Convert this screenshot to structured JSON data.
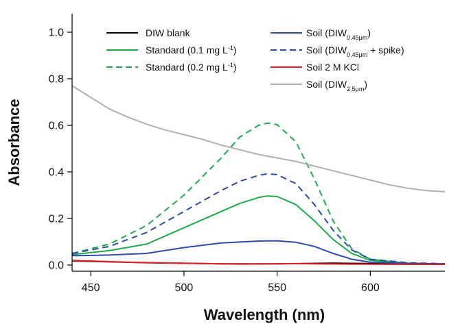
{
  "chart_data": {
    "type": "line",
    "xlabel": "Wavelength (nm)",
    "ylabel": "Absorbance",
    "xlim": [
      440,
      640
    ],
    "ylim": [
      0,
      1.05
    ],
    "xticks": [
      450,
      500,
      550,
      600
    ],
    "yticks": [
      0.0,
      0.2,
      0.4,
      0.6,
      0.8,
      1.0
    ],
    "grid": false,
    "legend_position": "top",
    "series": [
      {
        "name": "DIW blank",
        "legend": [
          {
            "t": "DIW blank"
          }
        ],
        "color": "#000000",
        "dash": "solid",
        "x": [
          440,
          480,
          520,
          550,
          580,
          610,
          640
        ],
        "y": [
          0.018,
          0.01,
          0.005,
          0.005,
          0.008,
          0.006,
          0.004
        ]
      },
      {
        "name": "Standard (0.1 mg L-1)",
        "legend": [
          {
            "t": "Standard (0.1 mg L"
          },
          {
            "t": "-1",
            "sup": true
          },
          {
            "t": ")"
          }
        ],
        "color": "#1faa4a",
        "dash": "solid",
        "x": [
          440,
          460,
          480,
          500,
          520,
          530,
          540,
          545,
          550,
          560,
          570,
          580,
          590,
          600,
          620,
          640
        ],
        "y": [
          0.045,
          0.062,
          0.09,
          0.16,
          0.23,
          0.265,
          0.29,
          0.297,
          0.294,
          0.26,
          0.19,
          0.11,
          0.05,
          0.02,
          0.008,
          0.004
        ]
      },
      {
        "name": "Standard (0.2 mg L-1)",
        "legend": [
          {
            "t": "Standard (0.2 mg L"
          },
          {
            "t": "-1",
            "sup": true
          },
          {
            "t": ")"
          }
        ],
        "color": "#1faa4a",
        "dash": "dashed",
        "x": [
          440,
          460,
          480,
          500,
          520,
          530,
          540,
          545,
          550,
          560,
          570,
          580,
          590,
          600,
          620,
          640
        ],
        "y": [
          0.05,
          0.09,
          0.17,
          0.3,
          0.46,
          0.55,
          0.6,
          0.61,
          0.603,
          0.53,
          0.37,
          0.19,
          0.07,
          0.025,
          0.008,
          0.004
        ]
      },
      {
        "name": "Soil (DIW0.45μm)",
        "legend": [
          {
            "t": "Soil (DIW"
          },
          {
            "t": "0.45μm",
            "sub": true
          },
          {
            "t": ")"
          }
        ],
        "color": "#2c4aa8",
        "dash": "solid",
        "x": [
          440,
          460,
          480,
          500,
          520,
          540,
          550,
          560,
          570,
          580,
          590,
          600,
          620,
          640
        ],
        "y": [
          0.04,
          0.043,
          0.05,
          0.075,
          0.095,
          0.103,
          0.104,
          0.098,
          0.08,
          0.05,
          0.025,
          0.012,
          0.007,
          0.005
        ]
      },
      {
        "name": "Soil (DIW0.45μm + spike)",
        "legend": [
          {
            "t": "Soil (DIW"
          },
          {
            "t": "0.45μm",
            "sub": true
          },
          {
            "t": " + spike)"
          }
        ],
        "color": "#2c4aa8",
        "dash": "dashed",
        "x": [
          440,
          460,
          480,
          500,
          520,
          530,
          540,
          545,
          550,
          560,
          570,
          580,
          590,
          600,
          620,
          640
        ],
        "y": [
          0.05,
          0.08,
          0.14,
          0.23,
          0.32,
          0.36,
          0.385,
          0.392,
          0.388,
          0.35,
          0.26,
          0.15,
          0.065,
          0.025,
          0.01,
          0.006
        ]
      },
      {
        "name": "Soil 2 M KCl",
        "legend": [
          {
            "t": "Soil 2 M KCl"
          }
        ],
        "color": "#e8202a",
        "dash": "solid",
        "x": [
          440,
          470,
          500,
          530,
          560,
          590,
          620,
          640
        ],
        "y": [
          0.02,
          0.012,
          0.008,
          0.004,
          0.006,
          0.004,
          0.003,
          0.003
        ]
      },
      {
        "name": "Soil (DIW2.5μm)",
        "legend": [
          {
            "t": "Soil (DIW"
          },
          {
            "t": "2.5μm",
            "sub": true
          },
          {
            "t": ")"
          }
        ],
        "color": "#b0b0aa",
        "dash": "solid",
        "x": [
          440,
          450,
          460,
          470,
          480,
          490,
          500,
          510,
          520,
          530,
          540,
          550,
          560,
          570,
          580,
          590,
          600,
          610,
          620,
          630,
          640
        ],
        "y": [
          0.77,
          0.72,
          0.67,
          0.635,
          0.605,
          0.58,
          0.56,
          0.54,
          0.515,
          0.495,
          0.475,
          0.46,
          0.445,
          0.425,
          0.405,
          0.385,
          0.365,
          0.345,
          0.33,
          0.32,
          0.315
        ]
      }
    ]
  }
}
